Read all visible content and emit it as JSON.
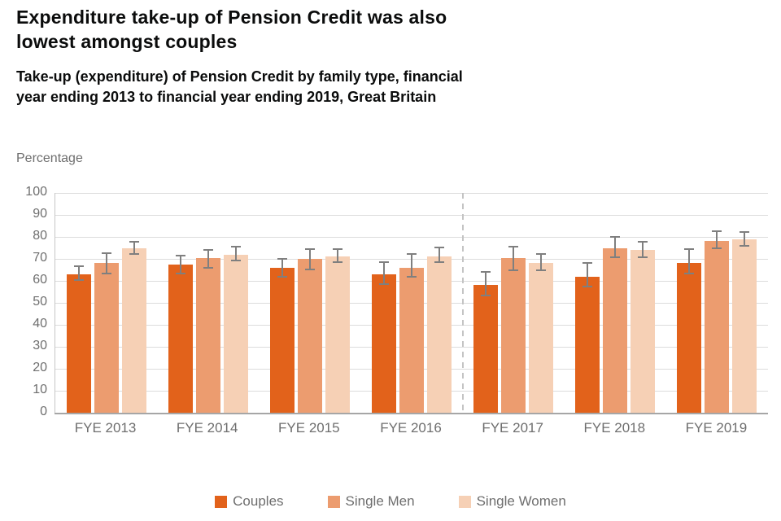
{
  "page": {
    "title_line1": "Expenditure take-up of Pension Credit was also",
    "title_line2": "lowest amongst couples",
    "subtitle_line1": "Take-up (expenditure) of Pension Credit by family type, financial",
    "subtitle_line2": "year ending 2013 to financial year ending 2019, Great Britain",
    "axis_unit_label": "Percentage"
  },
  "colors": {
    "couples": "#E2621B",
    "single_men": "#EC9C6F",
    "single_women": "#F6D0B5",
    "error_bar": "#7F7F7F",
    "gridline": "#DCDCDC",
    "axis_text": "#6E6E6E",
    "divider": "#C4C4C4",
    "title_text": "#0B0C0C"
  },
  "chart_data": {
    "type": "bar",
    "title": "Expenditure take-up of Pension Credit was also lowest amongst couples",
    "subtitle": "Take-up (expenditure) of Pension Credit by family type, financial year ending 2013 to financial year ending 2019, Great Britain",
    "ylabel": "Percentage",
    "xlabel": "",
    "ylim": [
      0,
      100
    ],
    "yticks": [
      0,
      10,
      20,
      30,
      40,
      50,
      60,
      70,
      80,
      90,
      100
    ],
    "grid": true,
    "legend_position": "bottom",
    "error_bars": true,
    "divider_after_category": "FYE 2016",
    "categories": [
      "FYE 2013",
      "FYE 2014",
      "FYE 2015",
      "FYE 2016",
      "FYE 2017",
      "FYE 2018",
      "FYE 2019"
    ],
    "series": [
      {
        "name": "Couples",
        "color": "#E2621B",
        "values": [
          63,
          67.5,
          66,
          63,
          58,
          62,
          68
        ],
        "error_low": [
          60,
          63,
          61.5,
          58,
          53,
          57,
          63
        ],
        "error_high": [
          67,
          72,
          70.5,
          69,
          64.5,
          68.5,
          75
        ]
      },
      {
        "name": "Single Men",
        "color": "#EC9C6F",
        "values": [
          68,
          70.5,
          70,
          66,
          70.5,
          75,
          78
        ],
        "error_low": [
          63,
          65.5,
          65,
          61.5,
          64.5,
          70.5,
          74.5
        ],
        "error_high": [
          73,
          74.5,
          75,
          72.5,
          76,
          80.5,
          83
        ]
      },
      {
        "name": "Single Women",
        "color": "#F6D0B5",
        "values": [
          75,
          72,
          71,
          71,
          68,
          74,
          79
        ],
        "error_low": [
          72,
          69,
          68,
          68,
          64.5,
          70.5,
          75.5
        ],
        "error_high": [
          78,
          76,
          75,
          75.5,
          72.5,
          78,
          82.5
        ]
      }
    ]
  }
}
